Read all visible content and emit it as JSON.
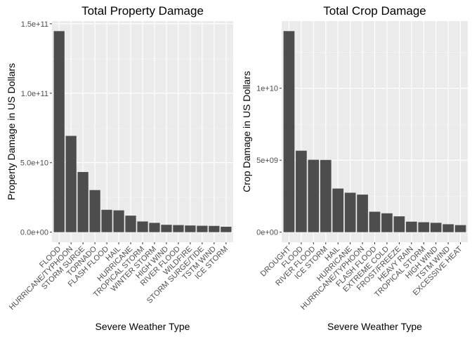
{
  "chart_data": [
    {
      "type": "bar",
      "title": "Total Property Damage",
      "xlabel": "Severe Weather Type",
      "ylabel": "Property Damage in US Dollars",
      "categories": [
        "FLOOD",
        "HURRICANE/TYPHOON",
        "STORM SURGE",
        "TORNADO",
        "FLASH FLOOD",
        "HAIL",
        "HURRICANE",
        "TROPICAL STORM",
        "WINTER STORM",
        "HIGH WIND",
        "RIVER FLOOD",
        "WILDFIRE",
        "STORM SURGE/TIDE",
        "TSTM WIND",
        "ICE STORM"
      ],
      "values": [
        144700000000,
        69300000000,
        43300000000,
        30300000000,
        16100000000,
        15700000000,
        11900000000,
        7700000000,
        6700000000,
        5300000000,
        5100000000,
        4800000000,
        4600000000,
        4500000000,
        3900000000
      ],
      "yticks": [
        0,
        50000000000,
        100000000000,
        150000000000
      ],
      "ytick_labels": [
        "0.0e+00",
        "5.0e+10",
        "1.0e+11",
        "1.5e+11"
      ],
      "ylim": [
        -7235000000,
        151935000000
      ],
      "grid": true,
      "bar_color": "#4D4D4D",
      "panel_color": "#EBEBEB"
    },
    {
      "type": "bar",
      "title": "Total Crop Damage",
      "xlabel": "Severe Weather Type",
      "ylabel": "Crop Damage in US Dollars",
      "categories": [
        "DROUGHT",
        "FLOOD",
        "RIVER FLOOD",
        "ICE STORM",
        "HAIL",
        "HURRICANE",
        "HURRICANE/TYPHOON",
        "FLASH FLOOD",
        "EXTREME COLD",
        "FROST/FREEZE",
        "HEAVY RAIN",
        "TROPICAL STORM",
        "HIGH WIND",
        "TSTM WIND",
        "EXCESSIVE HEAT"
      ],
      "values": [
        13970000000,
        5660000000,
        5030000000,
        5020000000,
        3030000000,
        2740000000,
        2610000000,
        1420000000,
        1310000000,
        1100000000,
        730000000,
        690000000,
        650000000,
        550000000,
        490000000
      ],
      "yticks": [
        0,
        5000000000,
        10000000000
      ],
      "ytick_labels": [
        "0e+00",
        "5e+09",
        "1e+10"
      ],
      "ylim": [
        -698500000,
        14668500000
      ],
      "grid": true,
      "bar_color": "#4D4D4D",
      "panel_color": "#EBEBEB"
    }
  ]
}
